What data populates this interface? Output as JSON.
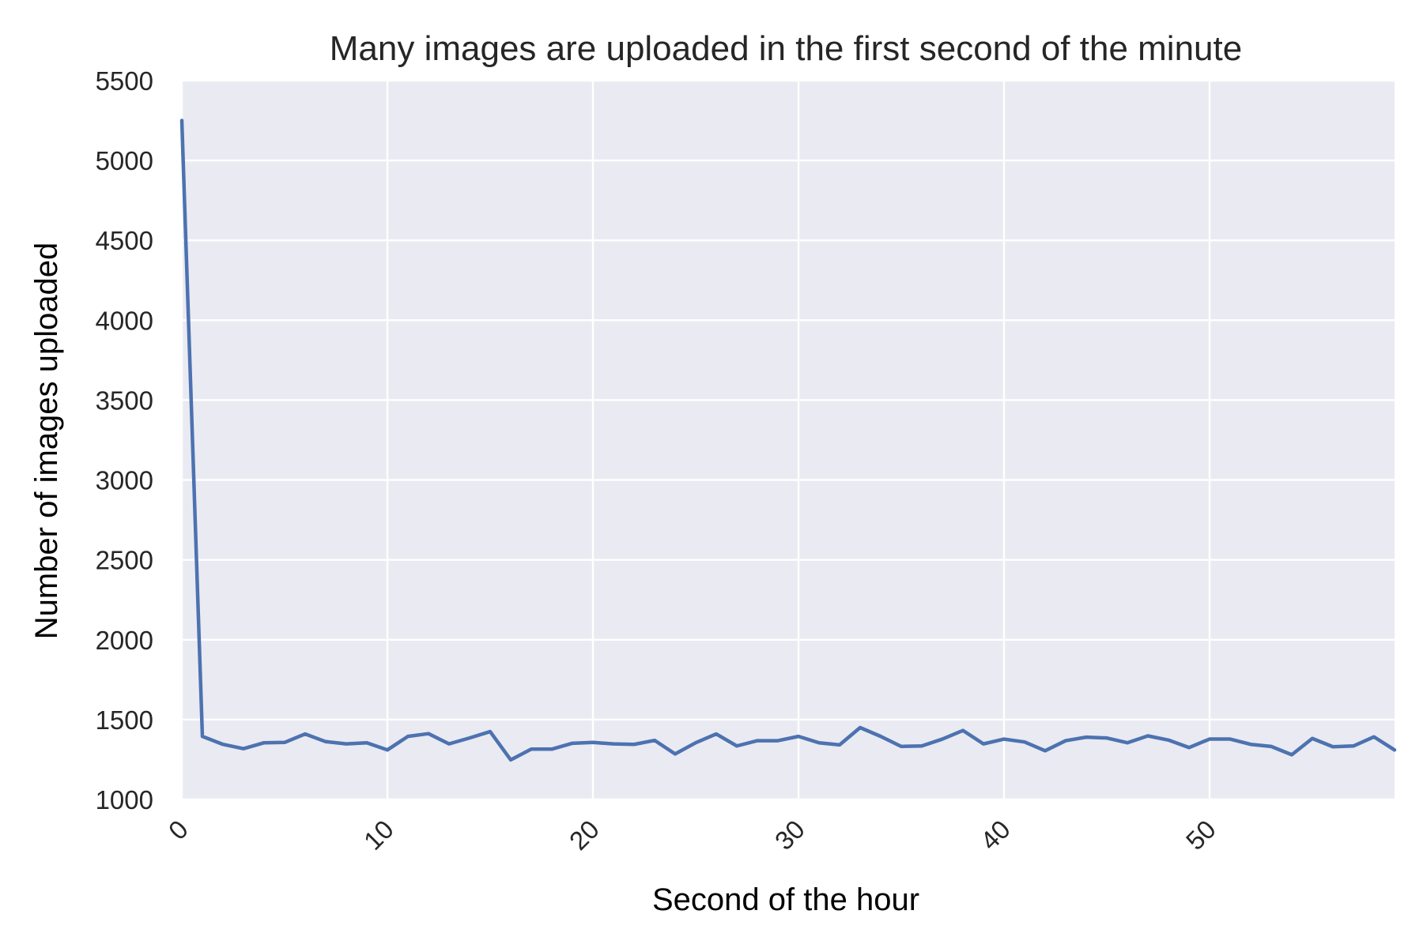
{
  "chart_data": {
    "type": "line",
    "title": "Many images are uploaded in the first second of the minute",
    "xlabel": "Second of the hour",
    "ylabel": "Number of images uploaded",
    "xlim": [
      0,
      59
    ],
    "ylim": [
      1000,
      5500
    ],
    "xticks": [
      0,
      10,
      20,
      30,
      40,
      50
    ],
    "yticks": [
      1000,
      1500,
      2000,
      2500,
      3000,
      3500,
      4000,
      4500,
      5000,
      5500
    ],
    "grid": true,
    "colors": {
      "background": "#eaeaf2",
      "grid": "#ffffff",
      "line": "#4c72b0"
    },
    "series": [
      {
        "x": [
          0,
          1,
          2,
          3,
          4,
          5,
          6,
          7,
          8,
          9,
          10,
          11,
          12,
          13,
          14,
          15,
          16,
          17,
          18,
          19,
          20,
          21,
          22,
          23,
          24,
          25,
          26,
          27,
          28,
          29,
          30,
          31,
          32,
          33,
          34,
          35,
          36,
          37,
          38,
          39,
          40,
          41,
          42,
          43,
          44,
          45,
          46,
          47,
          48,
          49,
          50,
          51,
          52,
          53,
          54,
          55,
          56,
          57,
          58,
          59
        ],
        "values": [
          5250,
          1395,
          1345,
          1318,
          1355,
          1357,
          1410,
          1362,
          1348,
          1355,
          1310,
          1395,
          1412,
          1348,
          1385,
          1425,
          1248,
          1315,
          1315,
          1352,
          1357,
          1348,
          1345,
          1370,
          1285,
          1355,
          1410,
          1335,
          1368,
          1368,
          1395,
          1355,
          1342,
          1450,
          1395,
          1332,
          1335,
          1378,
          1432,
          1348,
          1378,
          1360,
          1305,
          1368,
          1390,
          1385,
          1355,
          1398,
          1372,
          1325,
          1378,
          1378,
          1345,
          1332,
          1280,
          1382,
          1330,
          1335,
          1392,
          1310
        ]
      }
    ]
  }
}
